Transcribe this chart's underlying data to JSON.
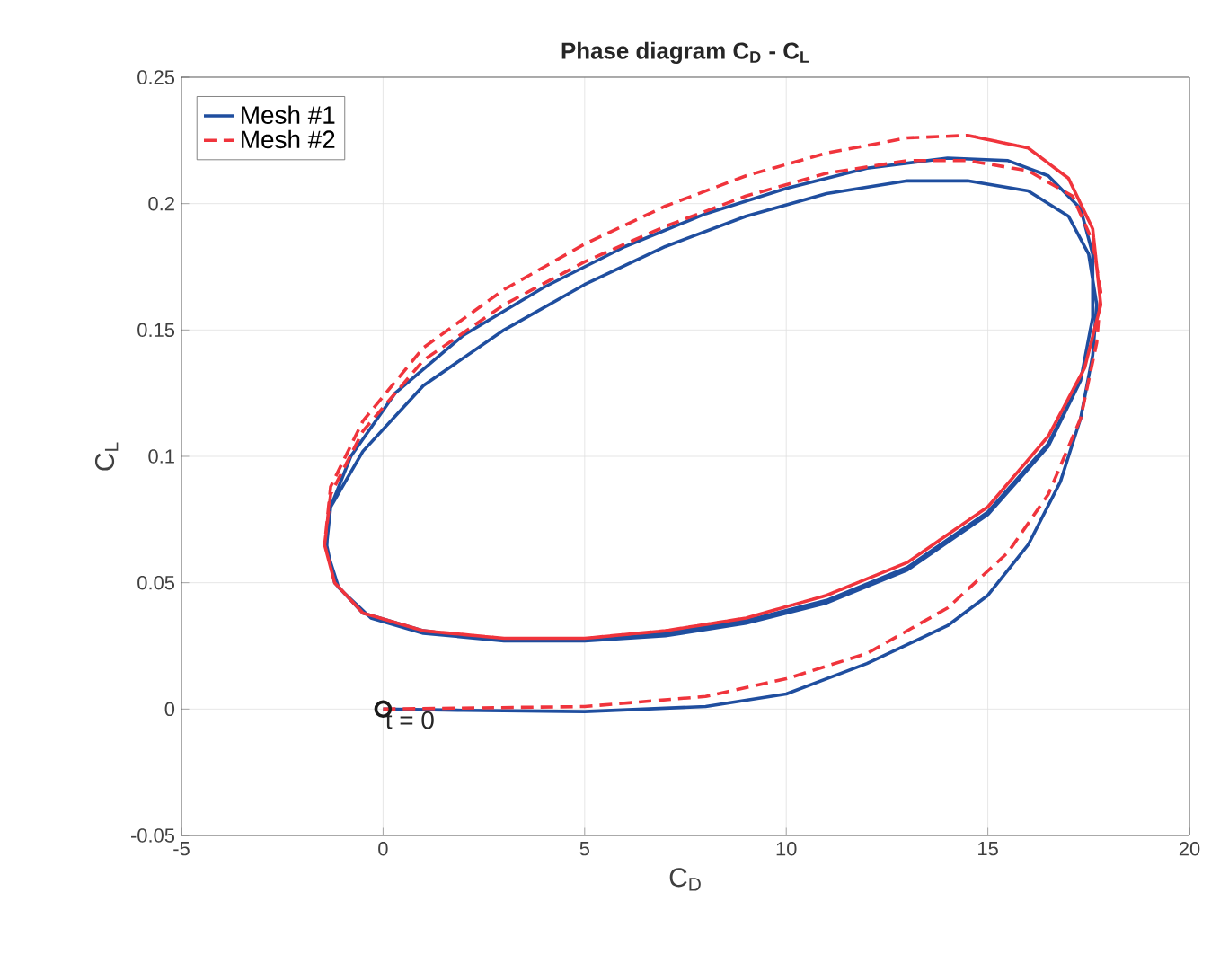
{
  "chart_data": {
    "type": "line",
    "title": "Phase diagram C$_{D}$ - C$_{L}$",
    "xlabel": "C$_{D}$",
    "ylabel": "C$_{L}$",
    "xlim": [
      -5,
      20
    ],
    "ylim": [
      -0.05,
      0.25
    ],
    "xticks": [
      -5,
      0,
      5,
      10,
      15,
      20
    ],
    "yticks": [
      -0.05,
      0,
      0.05,
      0.1,
      0.15,
      0.2,
      0.25
    ],
    "grid": true,
    "legend": "top left",
    "marker": "none",
    "annotations": [
      {
        "text": "t = 0",
        "x": 0,
        "y": 0
      }
    ],
    "series": [
      {
        "name": "Mesh #1",
        "color": "#1f4e9f",
        "line_style": "solid",
        "x": [
          0,
          2,
          5,
          8,
          10,
          12,
          14,
          15,
          16,
          16.8,
          17.3,
          17.6,
          17.7,
          17.5,
          17,
          16,
          14.5,
          13,
          11,
          9,
          7,
          5,
          3,
          1,
          -0.5,
          -1.3,
          -1.4,
          -1.2,
          -0.5,
          1,
          3,
          5,
          7,
          9,
          11,
          13,
          15,
          16.5,
          17.3,
          17.6,
          17.6,
          17.3,
          16.5,
          15.5,
          14,
          12,
          10,
          8,
          6,
          4,
          2,
          0.3,
          -0.8,
          -1.35,
          -1.4,
          -1.1,
          -0.3,
          1,
          3,
          5,
          7,
          9,
          11,
          13,
          15,
          16.5,
          17.3,
          17.6,
          17.6,
          17.3,
          16.5,
          15.5,
          14
        ],
        "values": [
          0,
          -0.0005,
          -0.001,
          0.001,
          0.006,
          0.018,
          0.033,
          0.045,
          0.065,
          0.09,
          0.115,
          0.14,
          0.16,
          0.18,
          0.195,
          0.205,
          0.209,
          0.209,
          0.204,
          0.195,
          0.183,
          0.168,
          0.15,
          0.128,
          0.102,
          0.08,
          0.065,
          0.05,
          0.038,
          0.031,
          0.027,
          0.027,
          0.03,
          0.035,
          0.043,
          0.056,
          0.078,
          0.105,
          0.13,
          0.155,
          0.18,
          0.198,
          0.211,
          0.217,
          0.218,
          0.214,
          0.206,
          0.196,
          0.183,
          0.167,
          0.148,
          0.125,
          0.1,
          0.078,
          0.063,
          0.048,
          0.036,
          0.03,
          0.027,
          0.027,
          0.029,
          0.034,
          0.042,
          0.055,
          0.077,
          0.104,
          0.13,
          0.155,
          0.18,
          0.198,
          0.211,
          0.217,
          0.218
        ]
      },
      {
        "name": "Mesh #2",
        "color": "#f0343c",
        "line_style": "dashed",
        "x": [
          0,
          5,
          8,
          10,
          12,
          14,
          15.5,
          16.5,
          17.3,
          17.7,
          17.8,
          17.6,
          17.1,
          16,
          14.5,
          13,
          11,
          9,
          7,
          5,
          3,
          1,
          -0.5,
          -1.3,
          -1.45,
          -1.2,
          -0.5,
          1,
          3,
          5,
          7,
          9,
          11,
          13,
          15,
          16.5,
          17.4,
          17.8,
          17.6,
          17,
          16,
          14.5,
          13,
          11,
          9,
          7,
          5,
          3,
          1,
          -0.5,
          -1.3,
          -1.45,
          -1.2,
          -0.5,
          1,
          3,
          5,
          7,
          9,
          11,
          13,
          15,
          16.5,
          17.4,
          17.8,
          17.6,
          17,
          16,
          14.5
        ],
        "values": [
          0,
          0.001,
          0.005,
          0.012,
          0.022,
          0.04,
          0.062,
          0.085,
          0.115,
          0.145,
          0.165,
          0.185,
          0.203,
          0.213,
          0.217,
          0.217,
          0.212,
          0.203,
          0.191,
          0.177,
          0.16,
          0.138,
          0.11,
          0.085,
          0.065,
          0.05,
          0.038,
          0.031,
          0.028,
          0.028,
          0.031,
          0.036,
          0.045,
          0.058,
          0.08,
          0.108,
          0.135,
          0.16,
          0.19,
          0.21,
          0.222,
          0.227,
          0.226,
          0.22,
          0.211,
          0.199,
          0.184,
          0.166,
          0.143,
          0.114,
          0.088,
          0.065,
          0.05,
          0.038,
          0.031,
          0.028,
          0.028,
          0.031,
          0.036,
          0.045,
          0.058,
          0.08,
          0.108,
          0.135,
          0.16,
          0.19,
          0.21,
          0.222,
          0.227
        ]
      },
      {
        "type": "scatter",
        "color": "#1a1a1a",
        "marker": "circle",
        "x": [
          0
        ],
        "values": [
          0
        ]
      }
    ]
  }
}
